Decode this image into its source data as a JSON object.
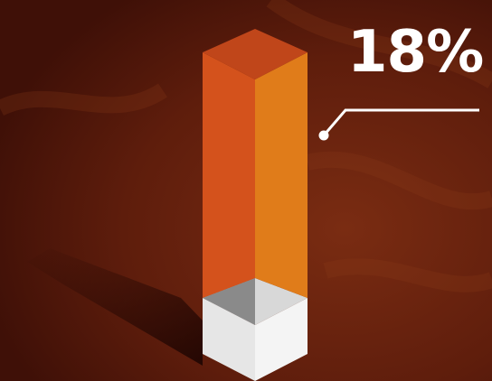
{
  "stat": {
    "value": 18,
    "label": "18%"
  },
  "colors": {
    "background": "#5a1a0c",
    "bar_left_face": "#d4521c",
    "bar_right_face": "#e07c1a",
    "bar_top_face": "#c0461a",
    "base_left_face": "#e6e6e6",
    "base_right_face": "#f4f4f4",
    "base_inner_shadow": "#8a8a8a",
    "text": "#ffffff"
  }
}
